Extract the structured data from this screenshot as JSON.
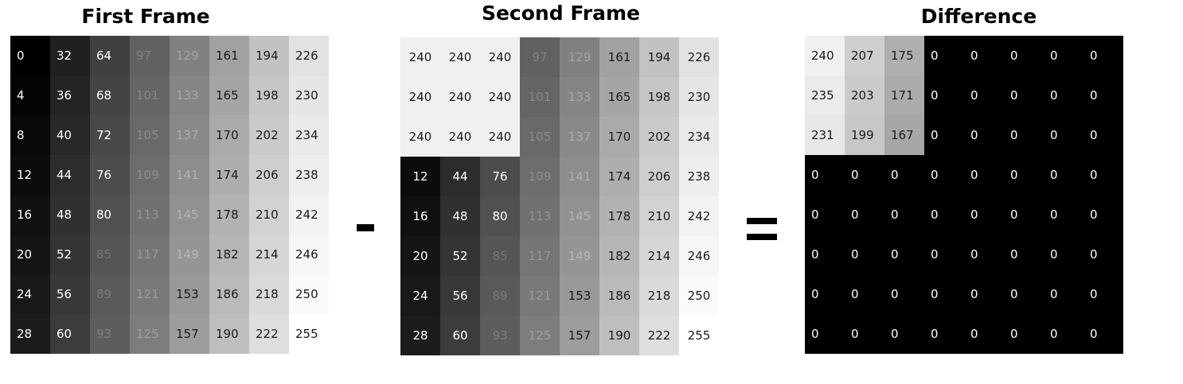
{
  "panels": [
    {
      "title": "First Frame",
      "values": [
        [
          0,
          32,
          64,
          97,
          129,
          161,
          194,
          226
        ],
        [
          4,
          36,
          68,
          101,
          133,
          165,
          198,
          230
        ],
        [
          8,
          40,
          72,
          105,
          137,
          170,
          202,
          234
        ],
        [
          12,
          44,
          76,
          109,
          141,
          174,
          206,
          238
        ],
        [
          16,
          48,
          80,
          113,
          145,
          178,
          210,
          242
        ],
        [
          20,
          52,
          85,
          117,
          149,
          182,
          214,
          246
        ],
        [
          24,
          56,
          89,
          121,
          153,
          186,
          218,
          250
        ],
        [
          28,
          60,
          93,
          125,
          157,
          190,
          222,
          255
        ]
      ]
    },
    {
      "title": "Second Frame",
      "values": [
        [
          240,
          240,
          240,
          97,
          129,
          161,
          194,
          226
        ],
        [
          240,
          240,
          240,
          101,
          133,
          165,
          198,
          230
        ],
        [
          240,
          240,
          240,
          105,
          137,
          170,
          202,
          234
        ],
        [
          12,
          44,
          76,
          109,
          141,
          174,
          206,
          238
        ],
        [
          16,
          48,
          80,
          113,
          145,
          178,
          210,
          242
        ],
        [
          20,
          52,
          85,
          117,
          149,
          182,
          214,
          246
        ],
        [
          24,
          56,
          89,
          121,
          153,
          186,
          218,
          250
        ],
        [
          28,
          60,
          93,
          125,
          157,
          190,
          222,
          255
        ]
      ]
    },
    {
      "title": "Difference",
      "values": [
        [
          240,
          207,
          175,
          0,
          0,
          0,
          0,
          0
        ],
        [
          235,
          203,
          171,
          0,
          0,
          0,
          0,
          0
        ],
        [
          231,
          199,
          167,
          0,
          0,
          0,
          0,
          0
        ],
        [
          0,
          0,
          0,
          0,
          0,
          0,
          0,
          0
        ],
        [
          0,
          0,
          0,
          0,
          0,
          0,
          0,
          0
        ],
        [
          0,
          0,
          0,
          0,
          0,
          0,
          0,
          0
        ],
        [
          0,
          0,
          0,
          0,
          0,
          0,
          0,
          0
        ],
        [
          0,
          0,
          0,
          0,
          0,
          0,
          0,
          0
        ]
      ]
    }
  ],
  "operators": {
    "minus": "-",
    "equals": "="
  }
}
